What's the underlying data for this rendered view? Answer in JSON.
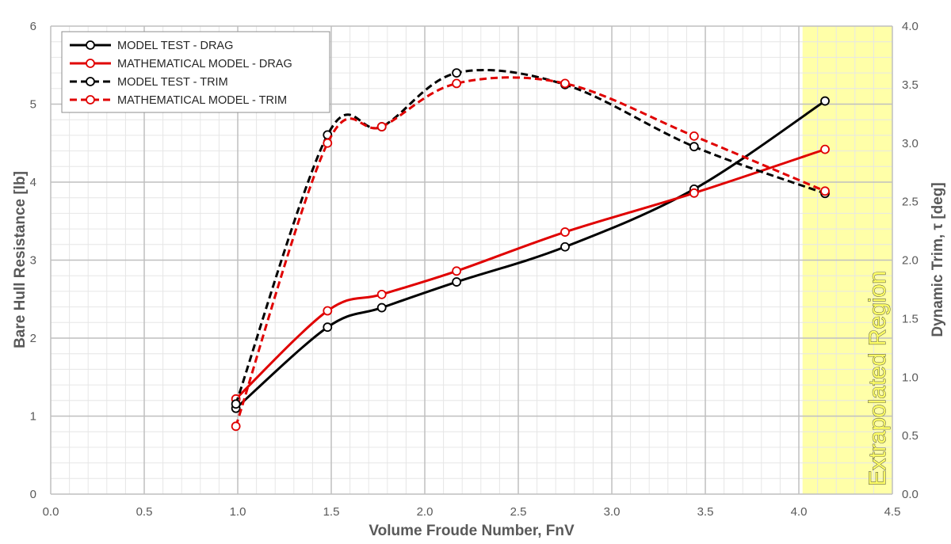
{
  "chart_data": {
    "type": "line",
    "title": "",
    "xlabel": "Volume Froude Number, FnV",
    "ylabel": "Bare Hull Resistance [lb]",
    "y2label": "Dynamic Trim, τ [deg]",
    "xlim": [
      0,
      4.5
    ],
    "ylim": [
      0,
      6
    ],
    "y2lim": [
      0,
      4
    ],
    "x_ticks": [
      "0.0",
      "0.5",
      "1.0",
      "1.5",
      "2.0",
      "2.5",
      "3.0",
      "3.5",
      "4.0",
      "4.5"
    ],
    "y_ticks": [
      "0",
      "1",
      "2",
      "3",
      "4",
      "5",
      "6"
    ],
    "y2_ticks": [
      "0.0",
      "0.5",
      "1.0",
      "1.5",
      "2.0",
      "2.5",
      "3.0",
      "3.5",
      "4.0"
    ],
    "grid": true,
    "legend_position": "top-left",
    "shaded_region": {
      "x_start": 4.02,
      "x_end": 4.5,
      "label": "Extrapolated Region",
      "color": "#ffff99"
    },
    "series": [
      {
        "name": "MODEL TEST - DRAG",
        "axis": "left",
        "color": "#000000",
        "dash": false,
        "x": [
          0.99,
          1.48,
          1.77,
          2.17,
          2.75,
          3.44,
          4.14
        ],
        "y": [
          1.1,
          2.14,
          2.39,
          2.72,
          3.17,
          3.91,
          5.04
        ]
      },
      {
        "name": "MATHEMATICAL MODEL - DRAG",
        "axis": "left",
        "color": "#e00000",
        "dash": false,
        "x": [
          0.99,
          1.48,
          1.77,
          2.17,
          2.75,
          3.44,
          4.14
        ],
        "y": [
          1.22,
          2.35,
          2.56,
          2.86,
          3.36,
          3.86,
          4.42
        ]
      },
      {
        "name": "MODEL TEST - TRIM",
        "axis": "right",
        "color": "#000000",
        "dash": true,
        "x": [
          0.99,
          1.48,
          1.77,
          2.17,
          2.75,
          3.44,
          4.14
        ],
        "y": [
          0.77,
          3.07,
          3.14,
          3.6,
          3.5,
          2.97,
          2.57
        ]
      },
      {
        "name": "MATHEMATICAL MODEL - TRIM",
        "axis": "right",
        "color": "#e00000",
        "dash": true,
        "x": [
          0.99,
          1.48,
          1.77,
          2.17,
          2.75,
          3.44,
          4.14
        ],
        "y": [
          0.58,
          3.0,
          3.14,
          3.51,
          3.51,
          3.06,
          2.59
        ]
      }
    ]
  }
}
